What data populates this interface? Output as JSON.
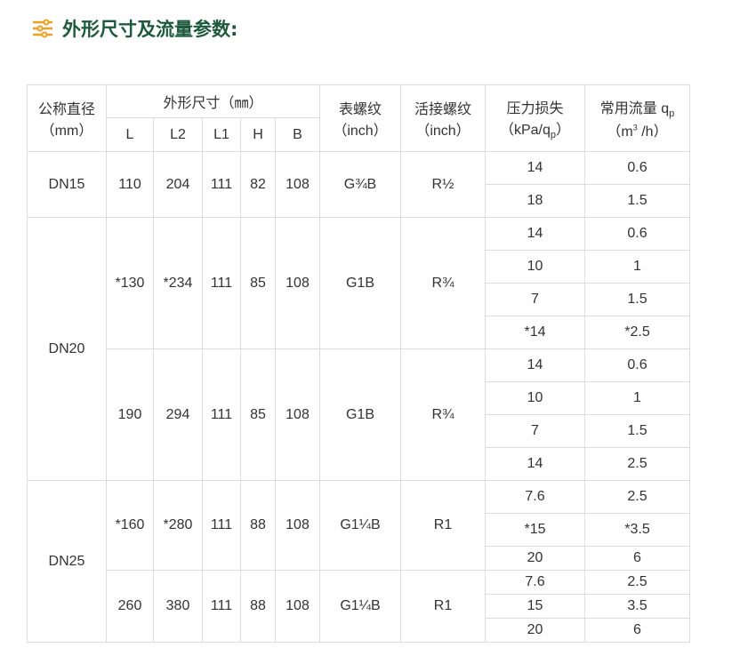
{
  "title": "外形尺寸及流量参数:",
  "colors": {
    "title": "#1d5a3c",
    "icon": "#f0a020"
  },
  "header": {
    "nominal": "公称直径",
    "nominal_unit": "（mm）",
    "dims": "外形尺寸（㎜）",
    "dim_cols": [
      "L",
      "L2",
      "L1",
      "H",
      "B"
    ],
    "meter_thread": "表螺纹",
    "meter_thread_unit": "（inch）",
    "union_thread": "活接螺纹",
    "union_thread_unit": "（inch）",
    "pressure_loss": "压力损失",
    "pressure_loss_unit": "（kPa/q",
    "pressure_loss_sub": "p",
    "pressure_loss_close": "）",
    "flow": "常用流量 q",
    "flow_sub": "p",
    "flow_unit_a": "（m",
    "flow_unit_sup": "3",
    "flow_unit_b": " /h）"
  },
  "groups": [
    {
      "dn": "DN15",
      "variants": [
        {
          "L": "110",
          "L2": "204",
          "L1": "111",
          "H": "82",
          "B": "108",
          "meter": "G¾B",
          "union": "R½",
          "rows": [
            [
              "14",
              "0.6"
            ],
            [
              "18",
              "1.5"
            ]
          ]
        }
      ]
    },
    {
      "dn": "DN20",
      "variants": [
        {
          "L": "*130",
          "L2": "*234",
          "L1": "111",
          "H": "85",
          "B": "108",
          "meter": "G1B",
          "union": "R¾",
          "rows": [
            [
              "14",
              "0.6"
            ],
            [
              "10",
              "1"
            ],
            [
              "7",
              "1.5"
            ],
            [
              "*14",
              "*2.5"
            ]
          ]
        },
        {
          "L": "190",
          "L2": "294",
          "L1": "111",
          "H": "85",
          "B": "108",
          "meter": "G1B",
          "union": "R¾",
          "rows": [
            [
              "14",
              "0.6"
            ],
            [
              "10",
              "1"
            ],
            [
              "7",
              "1.5"
            ],
            [
              "14",
              "2.5"
            ]
          ]
        }
      ]
    },
    {
      "dn": "DN25",
      "variants": [
        {
          "L": "*160",
          "L2": "*280",
          "L1": "111",
          "H": "88",
          "B": "108",
          "meter": "G1¼B",
          "union": "R1",
          "rows": [
            [
              "7.6",
              "2.5"
            ],
            [
              "*15",
              "*3.5"
            ],
            [
              "20",
              "6"
            ]
          ]
        },
        {
          "L": "260",
          "L2": "380",
          "L1": "111",
          "H": "88",
          "B": "108",
          "meter": "G1¼B",
          "union": "R1",
          "rows": [
            [
              "7.6",
              "2.5"
            ],
            [
              "15",
              "3.5"
            ],
            [
              "20",
              "6"
            ]
          ]
        }
      ]
    }
  ]
}
